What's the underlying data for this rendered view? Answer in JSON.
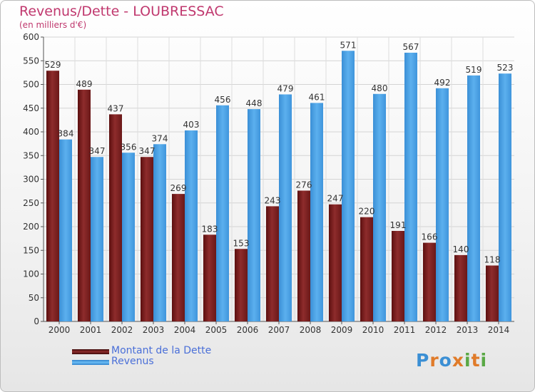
{
  "header": {
    "title": "Revenus/Dette - LOUBRESSAC",
    "subtitle": "(en milliers d'€)"
  },
  "legend": {
    "items": [
      {
        "label": "Montant de la Dette",
        "color": "#7a1f1f"
      },
      {
        "label": "Revenus",
        "color": "#4a9fdf"
      }
    ]
  },
  "logo": {
    "text": "Proxiti",
    "letters": [
      "P",
      "r",
      "o",
      "x",
      "i",
      "t",
      "i"
    ],
    "colors": [
      "#3b8fd4",
      "#e07b2a",
      "#3b8fd4",
      "#e07b2a",
      "#5aa845",
      "#e07b2a",
      "#5aa845"
    ]
  },
  "chart_data": {
    "type": "bar",
    "title": "Revenus/Dette - LOUBRESSAC",
    "subtitle": "(en milliers d'€)",
    "categories": [
      "2000",
      "2001",
      "2002",
      "2003",
      "2004",
      "2005",
      "2006",
      "2007",
      "2008",
      "2009",
      "2010",
      "2011",
      "2012",
      "2013",
      "2014"
    ],
    "series": [
      {
        "name": "Montant de la Dette",
        "color": "#7a1f1f",
        "values": [
          529,
          489,
          437,
          347,
          269,
          183,
          153,
          243,
          276,
          247,
          220,
          191,
          166,
          140,
          118
        ]
      },
      {
        "name": "Revenus",
        "color": "#4a9fdf",
        "values": [
          384,
          347,
          356,
          374,
          403,
          456,
          448,
          479,
          461,
          571,
          480,
          567,
          492,
          519,
          523
        ]
      }
    ],
    "ylim": [
      0,
      600
    ],
    "yticks": [
      0,
      50,
      100,
      150,
      200,
      250,
      300,
      350,
      400,
      450,
      500,
      550,
      600
    ],
    "grid": true,
    "legend_position": "bottom-left"
  }
}
